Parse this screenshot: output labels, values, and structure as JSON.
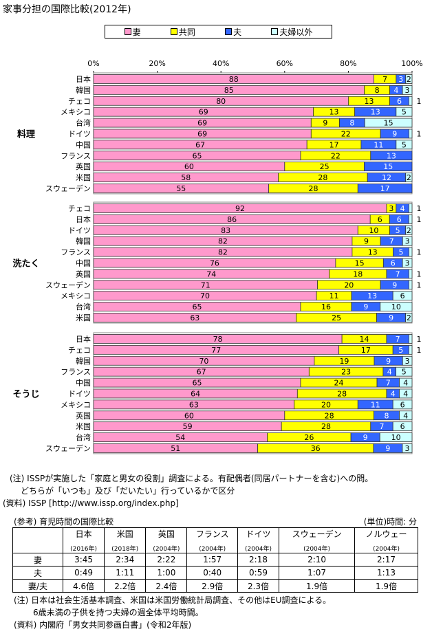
{
  "title": "家事分担の国際比較(2012年)",
  "chart_data": {
    "type": "bar",
    "orientation": "horizontal",
    "stacked": "percent",
    "xlim": [
      0,
      100
    ],
    "x_ticks": [
      "0%",
      "20%",
      "40%",
      "60%",
      "80%",
      "100%"
    ],
    "legend_placement": "top",
    "series": [
      {
        "name": "妻",
        "color": "#ff99cc"
      },
      {
        "name": "共同",
        "color": "#ffff00"
      },
      {
        "name": "夫",
        "color": "#3366ff"
      },
      {
        "name": "夫婦以外",
        "color": "#ccffff"
      }
    ],
    "groups": [
      {
        "label": "料理",
        "rows": [
          {
            "category": "日本",
            "values": [
              88,
              7,
              3,
              2
            ]
          },
          {
            "category": "韓国",
            "values": [
              85,
              8,
              4,
              3
            ]
          },
          {
            "category": "チェコ",
            "values": [
              80,
              13,
              6,
              1
            ]
          },
          {
            "category": "メキシコ",
            "values": [
              69,
              13,
              13,
              5
            ]
          },
          {
            "category": "台湾",
            "values": [
              69,
              9,
              8,
              15
            ]
          },
          {
            "category": "ドイツ",
            "values": [
              69,
              22,
              9,
              1
            ]
          },
          {
            "category": "中国",
            "values": [
              67,
              17,
              11,
              5
            ]
          },
          {
            "category": "フランス",
            "values": [
              65,
              22,
              13,
              0
            ]
          },
          {
            "category": "英国",
            "values": [
              60,
              25,
              15,
              0
            ]
          },
          {
            "category": "米国",
            "values": [
              58,
              28,
              12,
              2
            ]
          },
          {
            "category": "スウェーデン",
            "values": [
              55,
              28,
              17,
              0
            ]
          }
        ]
      },
      {
        "label": "洗たく",
        "rows": [
          {
            "category": "チェコ",
            "values": [
              92,
              3,
              4,
              1
            ]
          },
          {
            "category": "日本",
            "values": [
              86,
              6,
              6,
              1
            ]
          },
          {
            "category": "ドイツ",
            "values": [
              83,
              10,
              5,
              2
            ]
          },
          {
            "category": "韓国",
            "values": [
              82,
              9,
              7,
              3
            ]
          },
          {
            "category": "フランス",
            "values": [
              82,
              13,
              5,
              1
            ]
          },
          {
            "category": "中国",
            "values": [
              76,
              15,
              6,
              3
            ]
          },
          {
            "category": "英国",
            "values": [
              74,
              18,
              7,
              1
            ]
          },
          {
            "category": "スウェーデン",
            "values": [
              71,
              20,
              9,
              1
            ]
          },
          {
            "category": "メキシコ",
            "values": [
              70,
              11,
              13,
              6
            ]
          },
          {
            "category": "台湾",
            "values": [
              65,
              16,
              9,
              10
            ]
          },
          {
            "category": "米国",
            "values": [
              63,
              25,
              9,
              2
            ]
          }
        ]
      },
      {
        "label": "そうじ",
        "rows": [
          {
            "category": "日本",
            "values": [
              78,
              14,
              7,
              1
            ]
          },
          {
            "category": "チェコ",
            "values": [
              77,
              17,
              5,
              1
            ]
          },
          {
            "category": "韓国",
            "values": [
              70,
              19,
              9,
              3
            ]
          },
          {
            "category": "フランス",
            "values": [
              67,
              23,
              4,
              5
            ]
          },
          {
            "category": "中国",
            "values": [
              65,
              24,
              7,
              4
            ]
          },
          {
            "category": "ドイツ",
            "values": [
              64,
              28,
              4,
              4
            ]
          },
          {
            "category": "メキシコ",
            "values": [
              63,
              20,
              11,
              6
            ]
          },
          {
            "category": "英国",
            "values": [
              60,
              28,
              8,
              4
            ]
          },
          {
            "category": "米国",
            "values": [
              59,
              28,
              7,
              6
            ]
          },
          {
            "category": "台湾",
            "values": [
              54,
              26,
              9,
              10
            ]
          },
          {
            "category": "スウェーデン",
            "values": [
              51,
              36,
              9,
              3
            ]
          }
        ]
      }
    ]
  },
  "notes": {
    "note1a": "(注) ISSPが実施した「家庭と男女の役割」調査による。有配偶者(同居パートナーを含む)への問。",
    "note1b": "どちらが「いつも」及び「だいたい」行っているかで区分",
    "source1": "(資料) ISSP [http://www.issp.org/index.php]"
  },
  "reference_table": {
    "title": "(参考) 育児時間の国際比較",
    "unit": "(単位)時間: 分",
    "columns": [
      {
        "country": "日本",
        "year": "(2016年)"
      },
      {
        "country": "米国",
        "year": "(2018年)"
      },
      {
        "country": "英国",
        "year": "(2004年)"
      },
      {
        "country": "フランス",
        "year": "(2004年)"
      },
      {
        "country": "ドイツ",
        "year": "(2004年)"
      },
      {
        "country": "スウェーデン",
        "year": "(2004年)"
      },
      {
        "country": "ノルウェー",
        "year": "(2004年)"
      }
    ],
    "rows": [
      {
        "label": "妻",
        "cells": [
          "3:45",
          "2:34",
          "2:22",
          "1:57",
          "2:18",
          "2:10",
          "2:17"
        ]
      },
      {
        "label": "夫",
        "cells": [
          "0:49",
          "1:11",
          "1:00",
          "0:40",
          "0:59",
          "1:07",
          "1:13"
        ]
      },
      {
        "label": "妻/夫",
        "cells": [
          "4.6倍",
          "2.2倍",
          "2.4倍",
          "2.9倍",
          "2.3倍",
          "1.9倍",
          "1.9倍"
        ]
      }
    ],
    "note_a": "(注) 日本は社会生活基本調査、米国は米国労働統計局調査、その他はEU調査による。",
    "note_b": "6歳未満の子供を持つ夫婦の週全体平均時間。",
    "source": "(資料) 内閣府「男女共同参画白書」(令和2年版)"
  }
}
